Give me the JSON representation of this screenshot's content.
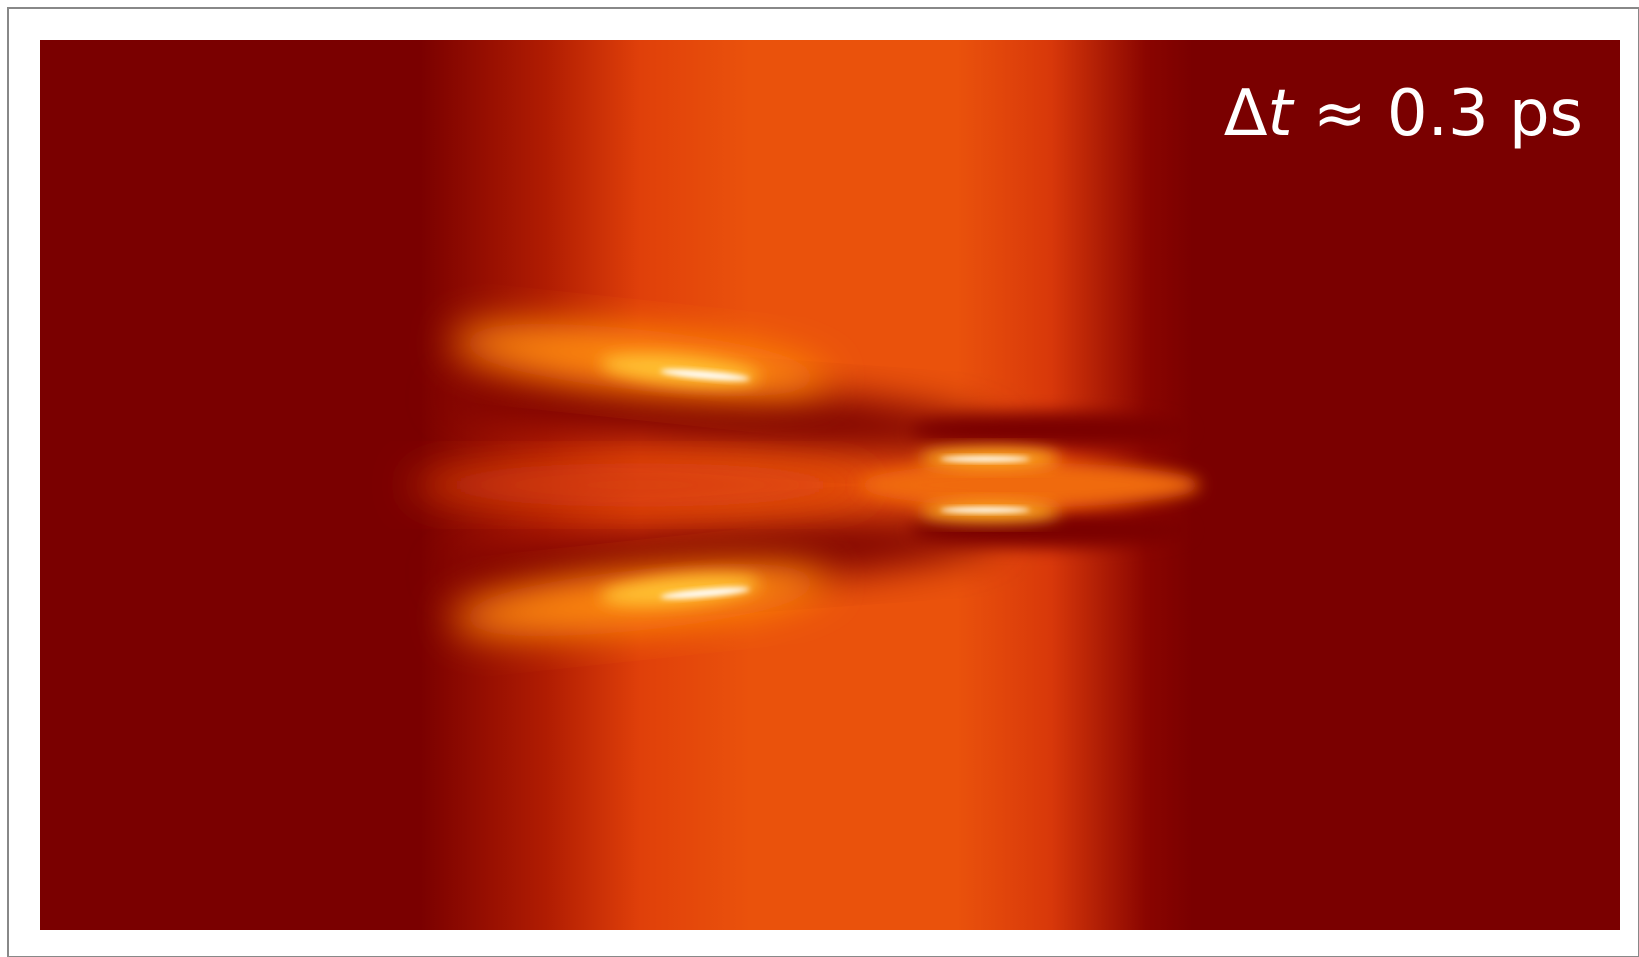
{
  "label": {
    "delta": "Δ",
    "variable": "t",
    "rest": " ≈ 0.3 ps"
  }
}
